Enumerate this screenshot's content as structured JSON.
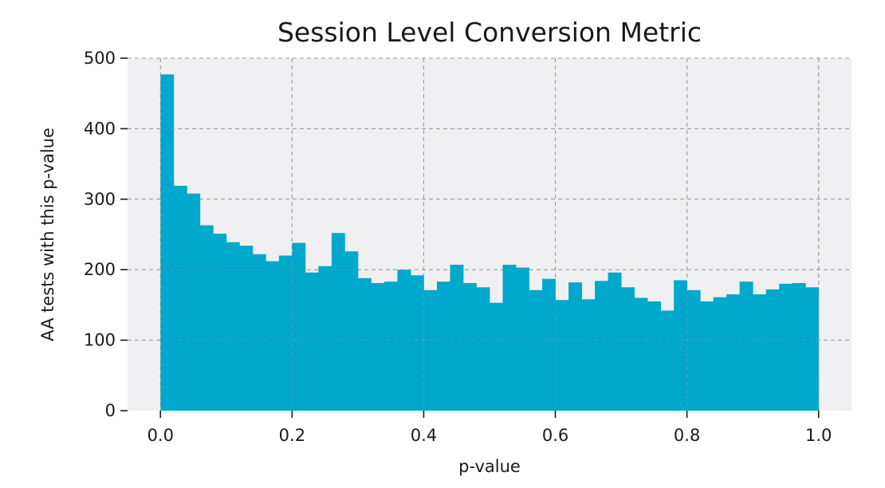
{
  "chart_data": {
    "type": "bar",
    "title": "Session Level Conversion Metric",
    "xlabel": "p-value",
    "ylabel": "AA tests with this p-value",
    "xlim": [
      -0.05,
      1.05
    ],
    "ylim": [
      0,
      500
    ],
    "xticks": [
      "0.0",
      "0.2",
      "0.4",
      "0.6",
      "0.8",
      "1.0"
    ],
    "yticks": [
      "0",
      "100",
      "200",
      "300",
      "400",
      "500"
    ],
    "bin_start": 0.0,
    "bin_width": 0.02,
    "values": [
      477,
      319,
      308,
      263,
      251,
      239,
      234,
      222,
      212,
      220,
      238,
      196,
      205,
      252,
      226,
      188,
      181,
      183,
      200,
      192,
      171,
      183,
      207,
      181,
      175,
      153,
      207,
      203,
      171,
      187,
      157,
      182,
      158,
      184,
      196,
      175,
      160,
      155,
      142,
      185,
      171,
      155,
      161,
      165,
      183,
      165,
      172,
      180,
      181,
      175
    ],
    "grid": true,
    "bar_color": "#00a8cc",
    "background_color": "#f0f0f2"
  }
}
